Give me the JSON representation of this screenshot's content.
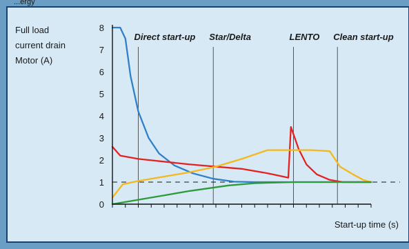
{
  "page": {
    "header_fragment": "...ergy",
    "colors": {
      "background": "#6b9ec4",
      "panel": "#d7e9f4",
      "border": "#1c3f6e"
    }
  },
  "chart_data": {
    "type": "line",
    "ylabel_lines": [
      "Full load",
      "current drain",
      "Motor (A)"
    ],
    "xlabel": "Start-up time (s)",
    "ylim": [
      0,
      8
    ],
    "yticks": [
      0,
      1,
      2,
      3,
      4,
      5,
      6,
      7,
      8
    ],
    "xlim": [
      0,
      100
    ],
    "reference_line": {
      "y": 1,
      "style": "dashed"
    },
    "method_markers": [
      {
        "label": "Direct start-up",
        "x": 10
      },
      {
        "label": "Star/Delta",
        "x": 39
      },
      {
        "label": "LENTO",
        "x": 70
      },
      {
        "label": "Clean start-up",
        "x": 87
      }
    ],
    "series": [
      {
        "color": "#2f7fc9",
        "points": [
          [
            0,
            8
          ],
          [
            3,
            8
          ],
          [
            5,
            7.5
          ],
          [
            7,
            5.8
          ],
          [
            10,
            4.2
          ],
          [
            14,
            3
          ],
          [
            18,
            2.3
          ],
          [
            24,
            1.75
          ],
          [
            31,
            1.4
          ],
          [
            39,
            1.15
          ],
          [
            47,
            1.02
          ],
          [
            55,
            1
          ],
          [
            100,
            1
          ]
        ]
      },
      {
        "color": "#e32222",
        "points": [
          [
            0,
            2.6
          ],
          [
            3,
            2.2
          ],
          [
            10,
            2.05
          ],
          [
            30,
            1.8
          ],
          [
            50,
            1.6
          ],
          [
            60,
            1.4
          ],
          [
            68,
            1.2
          ],
          [
            69,
            3.5
          ],
          [
            72,
            2.5
          ],
          [
            75,
            1.8
          ],
          [
            79,
            1.35
          ],
          [
            84,
            1.1
          ],
          [
            89,
            1
          ],
          [
            100,
            1
          ]
        ]
      },
      {
        "color": "#f5b81a",
        "points": [
          [
            0,
            0.3
          ],
          [
            4,
            0.9
          ],
          [
            10,
            1.05
          ],
          [
            20,
            1.25
          ],
          [
            30,
            1.45
          ],
          [
            40,
            1.7
          ],
          [
            50,
            2.05
          ],
          [
            60,
            2.45
          ],
          [
            66,
            2.45
          ],
          [
            77,
            2.45
          ],
          [
            84,
            2.4
          ],
          [
            88,
            1.7
          ],
          [
            93,
            1.35
          ],
          [
            97,
            1.1
          ],
          [
            100,
            1
          ]
        ]
      },
      {
        "color": "#2e9a3c",
        "points": [
          [
            0,
            0
          ],
          [
            10,
            0.2
          ],
          [
            20,
            0.4
          ],
          [
            30,
            0.6
          ],
          [
            45,
            0.85
          ],
          [
            55,
            0.95
          ],
          [
            70,
            1
          ],
          [
            100,
            1
          ]
        ]
      }
    ]
  }
}
